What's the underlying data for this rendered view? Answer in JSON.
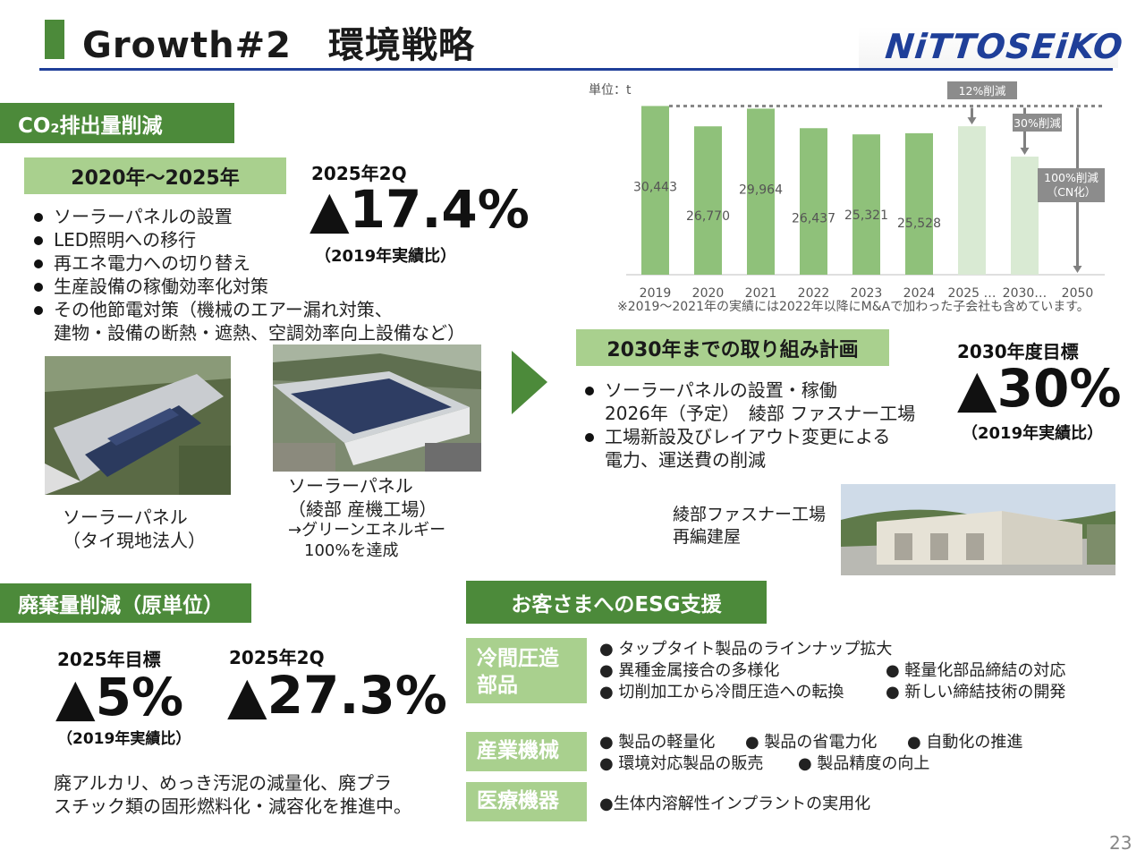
{
  "header": {
    "title": "Growth#2　環境戦略",
    "logo_text": "NiTTOSEiKO"
  },
  "co2": {
    "head": "CO₂排出量削減",
    "period": "2020年～2025年",
    "bullets": [
      "ソーラーパネルの設置",
      "LED照明への移行",
      "再エネ電力への切り替え",
      "生産設備の稼働効率化対策",
      "その他節電対策（機械のエアー漏れ対策、",
      "建物・設備の断熱・遮熱、空調効率向上設備など）"
    ],
    "result_label": "2025年2Q",
    "result_value": "▲17.4%",
    "result_note": "（2019年実績比）",
    "photo1_caption_1": "ソーラーパネル",
    "photo1_caption_2": "（タイ現地法人）",
    "photo2_caption_1": "ソーラーパネル",
    "photo2_caption_2": "（綾部 産機工場）",
    "photo2_caption_3": "→グリーンエネルギー",
    "photo2_caption_4": "100%を達成"
  },
  "chart_data": {
    "type": "bar",
    "unit_label": "単位：t",
    "categories": [
      "2019",
      "2020",
      "2021",
      "2022",
      "2023",
      "2024",
      "2025 …",
      "2030…",
      "2050"
    ],
    "values": [
      30443,
      26770,
      29964,
      26437,
      25321,
      25528,
      26790,
      21310,
      0
    ],
    "value_labels": [
      "30,443",
      "26,770",
      "29,964",
      "26,437",
      "25,321",
      "25,528",
      "",
      "",
      ""
    ],
    "target_labels": [
      "12%削減",
      "30%削減",
      "100%削減",
      "（CN化）"
    ],
    "baseline": 30443,
    "ylim": [
      0,
      31000
    ],
    "colors": {
      "actual": "#8fc17a",
      "target": "#d9ead3",
      "arrow": "#808080"
    },
    "note": "※2019～2021年の実績には2022年以降にM&Aで加わった子会社も含めています。"
  },
  "plan": {
    "head": "2030年までの取り組み計画",
    "bullet1_line1": "ソーラーパネルの設置・稼働",
    "bullet1_line2": "2026年（予定）　綾部 ファスナー工場",
    "bullet2_line1": "工場新設及びレイアウト変更による",
    "bullet2_line2": "電力、運送費の削減",
    "goal_label": "2030年度目標",
    "goal_value": "▲30%",
    "goal_note": "（2019年実績比）",
    "photo_caption_1": "綾部ファスナー工場",
    "photo_caption_2": "再編建屋"
  },
  "waste": {
    "head": "廃棄量削減（原単位）",
    "target_label": "2025年目標",
    "target_value": "▲5%",
    "target_note": "（2019年実績比）",
    "result_label": "2025年2Q",
    "result_value": "▲27.3%",
    "desc_1": "廃アルカリ、めっき汚泥の減量化、廃プラ",
    "desc_2": "スチック類の固形燃料化・減容化を推進中。"
  },
  "esg": {
    "head": "お客さまへのESG支援",
    "cold": {
      "label_1": "冷間圧造",
      "label_2": "部品",
      "row1": "● タップタイト製品のラインナップ拡大",
      "row2a": "● 異種金属接合の多様化",
      "row2b": "● 軽量化部品締結の対応",
      "row3a": "● 切削加工から冷間圧造への転換",
      "row3b": "● 新しい締結技術の開発"
    },
    "industrial": {
      "label": "産業機械",
      "row1a": "● 製品の軽量化",
      "row1b": "● 製品の省電力化",
      "row1c": "● 自動化の推進",
      "row2a": "● 環境対応製品の販売",
      "row2b": "● 製品精度の向上"
    },
    "medical": {
      "label": "医療機器",
      "row1": "●生体内溶解性インプラントの実用化"
    }
  },
  "page_number": "23"
}
